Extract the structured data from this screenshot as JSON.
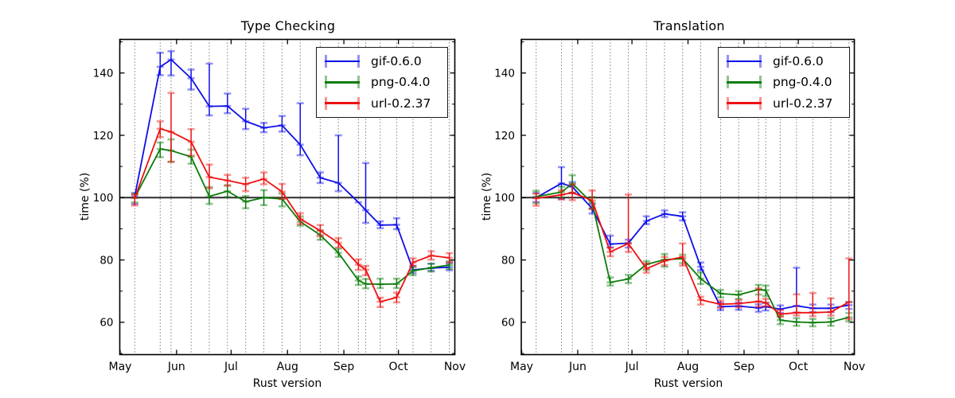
{
  "figure": {
    "background": "#ffffff"
  },
  "colors": {
    "gif": "#0f0fe8",
    "png": "#0b7d0b",
    "url": "#ee1111",
    "spine": "#000000",
    "baseline": "#2b2b2b",
    "grid": "#3a3a3a",
    "text": "#000000"
  },
  "legend": {
    "entries": [
      {
        "label": "gif-0.6.0",
        "series": "gif"
      },
      {
        "label": "png-0.4.0",
        "series": "png"
      },
      {
        "label": "url-0.2.37",
        "series": "url"
      }
    ]
  },
  "axes": {
    "xlabel": "Rust version",
    "ylabel": "time (%)",
    "yticks": [
      140,
      120,
      100,
      80,
      60
    ],
    "yticks_minor": [
      150,
      130,
      110,
      90,
      70,
      50
    ],
    "ylim": [
      49.6,
      150.6
    ],
    "baseline_value": 100,
    "month_labels": [
      "May",
      "Jun",
      "Jul",
      "Aug",
      "Sep",
      "Oct",
      "Nov"
    ],
    "month_day_offsets": [
      0,
      31,
      61,
      92,
      123,
      153,
      184
    ],
    "grid": "dotted-vertical-at-data-x"
  },
  "chart_data": [
    {
      "type": "line",
      "title": "Type Checking",
      "xlabel": "Rust version",
      "ylabel": "time (%)",
      "x_unit": "days-after-May-1",
      "x": [
        8,
        22,
        28,
        39,
        49,
        59,
        69,
        79,
        89,
        99,
        110,
        120,
        131,
        135,
        143,
        152,
        161,
        171,
        181
      ],
      "legend_position": "upper right",
      "series": [
        {
          "name": "gif-0.6.0",
          "color_key": "gif",
          "y": [
            100.4,
            142.0,
            144.3,
            138.3,
            129.3,
            129.4,
            124.5,
            122.4,
            123.2,
            117.0,
            106.4,
            104.7,
            98.5,
            96.0,
            91.2,
            91.3,
            76.8,
            77.4,
            77.7
          ],
          "err_lo": [
            98.0,
            139.3,
            139.2,
            134.7,
            126.4,
            127.1,
            122.0,
            121.0,
            121.2,
            113.6,
            104.7,
            102.1,
            null,
            91.9,
            90.2,
            89.9,
            75.8,
            76.5,
            76.7
          ],
          "err_hi": [
            101.5,
            146.5,
            147.0,
            141.1,
            143.0,
            133.4,
            128.5,
            124.0,
            126.2,
            130.3,
            108.1,
            120.0,
            null,
            111.1,
            92.4,
            93.4,
            78.1,
            78.8,
            79.0
          ]
        },
        {
          "name": "png-0.4.0",
          "color_key": "png",
          "y": [
            100.0,
            115.6,
            115.1,
            113.1,
            100.4,
            102.1,
            98.7,
            100.0,
            99.6,
            92.3,
            88.0,
            82.3,
            73.4,
            72.3,
            72.2,
            72.3,
            76.5,
            77.5,
            78.4
          ],
          "err_lo": [
            98.5,
            113.0,
            111.5,
            110.9,
            98.0,
            100.2,
            96.6,
            97.6,
            97.2,
            91.0,
            86.5,
            81.0,
            72.0,
            70.9,
            71.0,
            71.0,
            75.1,
            76.3,
            77.1
          ],
          "err_hi": [
            101.2,
            117.7,
            118.7,
            115.4,
            103.4,
            104.0,
            100.5,
            102.4,
            101.3,
            94.0,
            89.5,
            83.6,
            74.7,
            73.9,
            74.0,
            74.0,
            77.7,
            78.8,
            79.6
          ]
        },
        {
          "name": "url-0.2.37",
          "color_key": "url",
          "y": [
            99.9,
            122.1,
            121.1,
            117.9,
            106.6,
            105.5,
            104.3,
            106.0,
            101.9,
            93.2,
            89.4,
            85.5,
            78.5,
            76.9,
            66.6,
            68.0,
            79.2,
            81.4,
            80.7
          ],
          "err_lo": [
            97.5,
            119.4,
            111.5,
            113.5,
            103.0,
            103.8,
            102.1,
            104.3,
            99.6,
            91.5,
            87.6,
            84.0,
            76.8,
            75.1,
            64.9,
            66.4,
            78.1,
            80.1,
            79.2
          ],
          "err_hi": [
            101.0,
            124.5,
            133.6,
            122.0,
            110.6,
            107.3,
            106.4,
            108.1,
            104.4,
            95.0,
            91.2,
            87.0,
            80.2,
            78.1,
            67.9,
            69.5,
            80.5,
            82.8,
            82.2
          ]
        }
      ]
    },
    {
      "type": "line",
      "title": "Translation",
      "xlabel": "Rust version",
      "ylabel": "time (%)",
      "x_unit": "days-after-May-1",
      "x": [
        8,
        22,
        28,
        39,
        49,
        59,
        69,
        79,
        89,
        99,
        110,
        120,
        131,
        135,
        143,
        152,
        161,
        171,
        181
      ],
      "legend_position": "upper right",
      "series": [
        {
          "name": "gif-0.6.0",
          "color_key": "gif",
          "y": [
            100.0,
            104.6,
            103.5,
            96.5,
            85.1,
            85.4,
            92.5,
            94.8,
            94.0,
            77.8,
            65.0,
            65.2,
            64.6,
            65.0,
            64.2,
            65.3,
            64.5,
            64.5,
            65.5
          ],
          "err_lo": [
            98.6,
            99.6,
            101.5,
            94.9,
            84.0,
            84.0,
            91.5,
            93.8,
            92.7,
            76.7,
            63.9,
            64.0,
            63.4,
            63.8,
            63.0,
            63.1,
            63.3,
            63.3,
            64.3
          ],
          "err_hi": [
            101.5,
            109.8,
            105.0,
            97.9,
            87.8,
            86.5,
            94.0,
            95.9,
            95.3,
            79.2,
            66.3,
            66.4,
            65.8,
            66.2,
            65.4,
            77.5,
            65.7,
            65.7,
            66.5
          ]
        },
        {
          "name": "png-0.4.0",
          "color_key": "png",
          "y": [
            100.3,
            101.8,
            104.5,
            98.3,
            72.8,
            73.9,
            78.6,
            80.1,
            80.4,
            74.0,
            69.2,
            68.8,
            70.5,
            70.3,
            60.7,
            60.1,
            59.9,
            60.1,
            61.6
          ],
          "err_lo": [
            98.2,
            100.0,
            101.5,
            96.5,
            71.8,
            72.6,
            76.8,
            77.8,
            79.0,
            72.3,
            68.0,
            67.5,
            68.9,
            68.4,
            59.4,
            58.9,
            58.7,
            58.9,
            60.3
          ],
          "err_hi": [
            102.2,
            103.5,
            107.2,
            100.2,
            74.4,
            75.2,
            79.6,
            81.9,
            81.7,
            76.0,
            70.4,
            70.0,
            72.0,
            71.8,
            62.0,
            61.3,
            61.1,
            61.3,
            63.0
          ]
        },
        {
          "name": "url-0.2.37",
          "color_key": "url",
          "y": [
            99.8,
            100.9,
            101.6,
            99.1,
            82.6,
            85.3,
            77.2,
            79.7,
            81.0,
            67.2,
            65.8,
            66.0,
            66.7,
            66.3,
            62.6,
            63.1,
            63.1,
            63.3,
            66.5
          ],
          "err_lo": [
            97.4,
            99.4,
            99.2,
            96.3,
            81.2,
            82.6,
            75.9,
            78.3,
            78.2,
            65.7,
            64.6,
            64.8,
            65.0,
            65.1,
            61.8,
            62.2,
            62.0,
            62.2,
            61.0
          ],
          "err_hi": [
            101.3,
            102.4,
            104.3,
            102.3,
            84.0,
            101.0,
            78.9,
            81.0,
            85.3,
            68.2,
            67.0,
            67.2,
            70.9,
            67.5,
            63.9,
            69.0,
            69.4,
            67.7,
            80.5
          ]
        }
      ]
    }
  ]
}
